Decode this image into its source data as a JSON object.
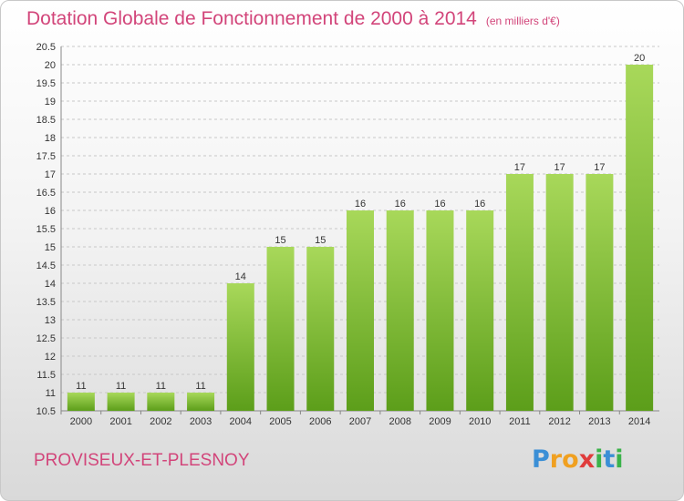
{
  "header": {
    "title": "Dotation Globale de Fonctionnement de 2000 à 2014",
    "subtitle": "(en milliers d'€)"
  },
  "footer": {
    "commune": "PROVISEUX-ET-PLESNOY",
    "logo": {
      "letters": [
        "P",
        "r",
        "o",
        "x",
        "i",
        "t",
        "i"
      ],
      "colors": [
        "#3b8fd6",
        "#f0a020",
        "#f0a020",
        "#e03c3c",
        "#3bb34a",
        "#3b8fd6",
        "#3bb34a"
      ]
    }
  },
  "colors": {
    "bar_light": "#a8d85a",
    "bar_dark": "#5c9e1a",
    "title": "#d2457a",
    "grid": "#c8c8c8"
  },
  "chart_data": {
    "type": "bar",
    "categories": [
      "2000",
      "2001",
      "2002",
      "2003",
      "2004",
      "2005",
      "2006",
      "2007",
      "2008",
      "2009",
      "2010",
      "2011",
      "2012",
      "2013",
      "2014"
    ],
    "values": [
      11,
      11,
      11,
      11,
      14,
      15,
      15,
      16,
      16,
      16,
      16,
      17,
      17,
      17,
      20
    ],
    "ylim": [
      10.5,
      20.5
    ],
    "yticks": [
      "10.5",
      "11",
      "11.5",
      "12",
      "12.5",
      "13",
      "13.5",
      "14",
      "14.5",
      "15",
      "15.5",
      "16",
      "16.5",
      "17",
      "17.5",
      "18",
      "18.5",
      "19",
      "19.5",
      "20",
      "20.5"
    ],
    "grid": true,
    "xlabel": "",
    "ylabel": ""
  }
}
